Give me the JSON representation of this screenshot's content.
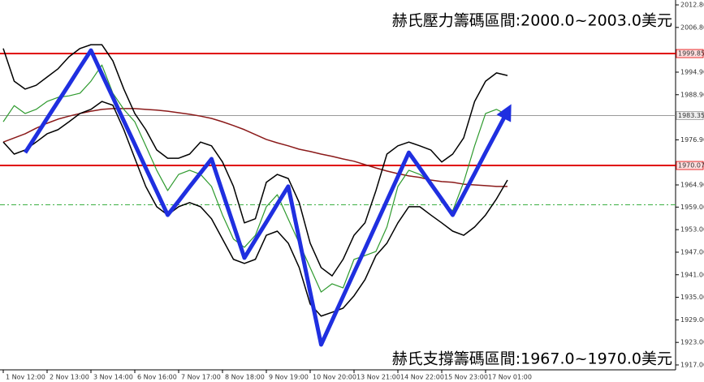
{
  "chart_data": {
    "type": "line",
    "annotations": [
      "赫氏壓力籌碼區間:2000.0~2003.0美元",
      "赫氏支撐籌碼區間:1967.0~1970.0美元"
    ],
    "categories": [
      "1 Nov 12:00",
      null,
      null,
      null,
      "2 Nov 13:00",
      null,
      null,
      null,
      "3 Nov 14:00",
      null,
      null,
      null,
      "6 Nov 16:00",
      null,
      null,
      null,
      "7 Nov 17:00",
      null,
      null,
      null,
      "8 Nov 18:00",
      null,
      null,
      null,
      "9 Nov 19:00",
      null,
      null,
      null,
      "10 Nov 20:00",
      null,
      null,
      null,
      "13 Nov 21:00",
      null,
      null,
      null,
      "14 Nov 22:00",
      null,
      null,
      null,
      "15 Nov 23:00",
      null,
      null,
      null,
      "17 Nov 01:00",
      null,
      null
    ],
    "series": [
      {
        "color": "#8b1a1a",
        "width": 1.5,
        "values": [
          1976.3,
          1977.4,
          1978.5,
          1980.0,
          1981.3,
          1982.4,
          1983.2,
          1983.9,
          1984.5,
          1985.0,
          1985.2,
          1985.2,
          1985.2,
          1985.0,
          1984.8,
          1984.5,
          1984.1,
          1983.7,
          1983.2,
          1982.6,
          1981.7,
          1980.7,
          1979.6,
          1978.3,
          1977.0,
          1976.1,
          1975.3,
          1974.4,
          1973.8,
          1973.1,
          1972.5,
          1971.8,
          1971.2,
          1970.3,
          1969.4,
          1968.6,
          1967.9,
          1967.3,
          1966.9,
          1966.2,
          1965.8,
          1965.6,
          1965.1,
          1964.9,
          1964.7,
          1964.5,
          1964.5
        ]
      },
      {
        "color": "#000000",
        "width": 1.5,
        "values": [
          2001.2,
          1992.5,
          1990.4,
          1991.4,
          1993.6,
          1995.8,
          1999.0,
          2001.2,
          2002.2,
          2002.2,
          1997.9,
          1990.4,
          1983.9,
          1979.6,
          1974.2,
          1972.0,
          1972.0,
          1973.1,
          1976.3,
          1975.3,
          1971.0,
          1964.5,
          1954.8,
          1955.9,
          1965.6,
          1967.7,
          1966.6,
          1960.2,
          1949.4,
          1942.9,
          1940.7,
          1945.1,
          1951.5,
          1954.8,
          1963.4,
          1973.1,
          1975.3,
          1976.3,
          1975.3,
          1974.2,
          1971.0,
          1973.1,
          1977.4,
          1987.1,
          1992.5,
          1994.7,
          1994.0
        ]
      },
      {
        "color": "#000000",
        "width": 1.5,
        "values": [
          1976.3,
          1973.1,
          1974.2,
          1976.3,
          1978.5,
          1979.6,
          1981.7,
          1983.9,
          1985.0,
          1987.1,
          1986.1,
          1979.6,
          1972.0,
          1964.5,
          1959.1,
          1956.9,
          1959.1,
          1960.2,
          1959.1,
          1955.9,
          1950.5,
          1945.1,
          1944.0,
          1945.1,
          1951.5,
          1952.6,
          1949.4,
          1942.9,
          1933.2,
          1930.0,
          1931.0,
          1932.1,
          1935.4,
          1939.7,
          1946.1,
          1949.4,
          1954.8,
          1959.1,
          1959.1,
          1956.9,
          1954.8,
          1952.6,
          1951.5,
          1953.7,
          1956.9,
          1961.2,
          1966.2
        ]
      },
      {
        "color": "#2e9a2e",
        "width": 1.2,
        "values": [
          1981.7,
          1986.0,
          1983.9,
          1985.0,
          1987.1,
          1988.2,
          1988.6,
          1989.3,
          1992.5,
          1996.8,
          1989.3,
          1985.0,
          1981.7,
          1975.3,
          1968.8,
          1963.4,
          1967.7,
          1968.8,
          1967.7,
          1964.5,
          1956.9,
          1950.5,
          1948.3,
          1951.5,
          1959.1,
          1962.3,
          1955.8,
          1949.4,
          1942.9,
          1936.4,
          1938.6,
          1937.5,
          1945.1,
          1946.1,
          1947.2,
          1953.7,
          1964.5,
          1968.8,
          1967.7,
          1965.6,
          1960.2,
          1958.0,
          1965.6,
          1975.3,
          1983.9,
          1985.0,
          1983.5
        ]
      },
      {
        "color": "#1f2fe0",
        "width": 5,
        "arrow": true,
        "values": [
          null,
          null,
          1973.5,
          1978.0,
          1982.6,
          1987.1,
          1991.6,
          1996.2,
          2000.7,
          1994.4,
          1988.2,
          1981.9,
          1975.7,
          1969.4,
          1963.2,
          1956.9,
          1960.6,
          1964.4,
          1968.1,
          1971.8,
          1963.0,
          1954.3,
          1945.5,
          1950.3,
          1955.0,
          1959.8,
          1964.5,
          1950.5,
          1936.4,
          1922.4,
          1928.8,
          1935.2,
          1941.6,
          1947.9,
          1954.3,
          1960.7,
          1967.1,
          1973.5,
          1969.4,
          1965.2,
          1961.1,
          1956.9,
          1962.4,
          1967.9,
          1973.5,
          1979.0,
          1984.5
        ]
      }
    ],
    "levels": [
      {
        "value": 1999.85,
        "color": "#e00000",
        "labeled": true
      },
      {
        "value": 1983.35,
        "color": "#9a9a9a",
        "labeled": true
      },
      {
        "value": 1970.07,
        "color": "#e00000",
        "labeled": true
      },
      {
        "value": 1959.6,
        "color": "#3cb043",
        "dashed": true
      }
    ],
    "ylim": [
      1915.7,
      2014.1
    ],
    "yticks": [
      {
        "value": 2012.8,
        "label": "2012.80"
      },
      {
        "value": 2006.8,
        "label": "2006.80"
      },
      {
        "value": 1994.9,
        "label": "1994.90"
      },
      {
        "value": 1988.9,
        "label": "1988.90"
      },
      {
        "value": 1976.9,
        "label": "1976.90"
      },
      {
        "value": 1964.9,
        "label": "1964.90"
      },
      {
        "value": 1959,
        "label": "1959.00"
      },
      {
        "value": 1953,
        "label": "1953.00"
      },
      {
        "value": 1947,
        "label": "1947.00"
      },
      {
        "value": 1941,
        "label": "1941.00"
      },
      {
        "value": 1935,
        "label": "1935.00"
      },
      {
        "value": 1929,
        "label": "1929.00"
      },
      {
        "value": 1923,
        "label": "1923.00"
      },
      {
        "value": 1917,
        "label": "1917.00"
      }
    ]
  }
}
